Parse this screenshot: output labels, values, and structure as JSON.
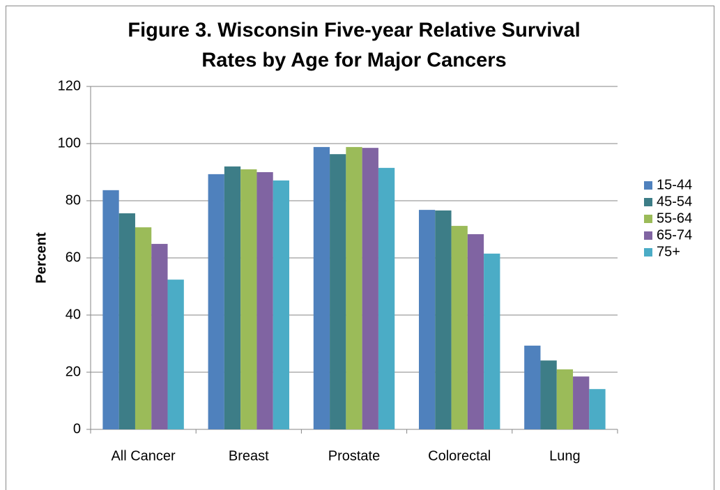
{
  "chart_data": {
    "type": "bar",
    "title": "Figure 3.  Wisconsin Five-year Relative Survival",
    "subtitle": "Rates by Age for Major Cancers",
    "y_label": "Percent",
    "categories": [
      "All Cancer",
      "Breast",
      "Prostate",
      "Colorectal",
      "Lung"
    ],
    "series": [
      {
        "name": "15-44",
        "color": "#4f81bd",
        "values": [
          83.7,
          89.3,
          98.8,
          76.8,
          29.3
        ]
      },
      {
        "name": "45-54",
        "color": "#3d7d87",
        "values": [
          75.6,
          92,
          96.3,
          76.6,
          24.1
        ]
      },
      {
        "name": "55-64",
        "color": "#9bbb59",
        "values": [
          70.7,
          91,
          98.8,
          71.2,
          21
        ]
      },
      {
        "name": "65-74",
        "color": "#8064a2",
        "values": [
          64.9,
          90,
          98.5,
          68.3,
          18.5
        ]
      },
      {
        "name": "75+",
        "color": "#4bacc6",
        "values": [
          52.4,
          87.1,
          91.5,
          61.5,
          14.1
        ]
      }
    ],
    "ylim": [
      0,
      120
    ],
    "yticks": [
      0,
      20,
      40,
      60,
      80,
      100,
      120
    ],
    "grid": true,
    "legend": "right"
  }
}
